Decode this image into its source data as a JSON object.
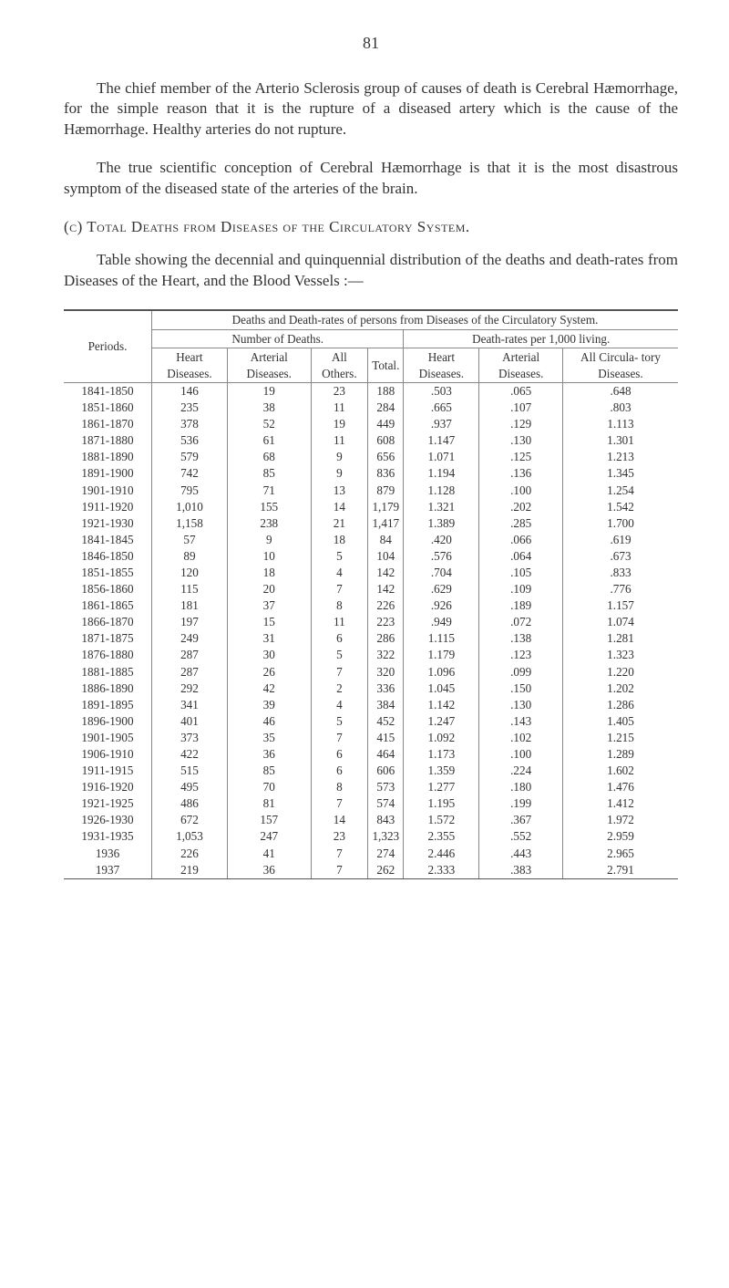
{
  "page_number": "81",
  "paragraphs": {
    "p1": "The chief member of the Arterio Sclerosis group of causes of death is Cerebral Hæmorrhage, for the simple reason that it is the rupture of a diseased artery which is the cause of the Hæmorrhage. Healthy arteries do not rupture.",
    "p2": "The true scientific conception of Cerebral Hæmorrhage is that it is the most disastrous symptom of the diseased state of the arteries of the brain.",
    "p3": "Table showing the decennial and quinquennial distribution of the deaths and death-rates from Diseases of the Heart, and the Blood Vessels :—"
  },
  "section_label": "(c)  Total Deaths from Diseases of the Circulatory System.",
  "table": {
    "caption": "Deaths and Death-rates of persons from Diseases of the Circulatory System.",
    "periods_label": "Periods.",
    "group1": "Number of Deaths.",
    "group2": "Death-rates per 1,000 living.",
    "cols": {
      "c1": "Heart Diseases.",
      "c2": "Arterial Diseases.",
      "c3": "All Others.",
      "c4": "Total.",
      "c5": "Heart Diseases.",
      "c6": "Arterial Diseases.",
      "c7": "All Circula- tory Diseases."
    },
    "blockA": [
      [
        "1841-1850",
        "146",
        "19",
        "23",
        "188",
        ".503",
        ".065",
        ".648"
      ],
      [
        "1851-1860",
        "235",
        "38",
        "11",
        "284",
        ".665",
        ".107",
        ".803"
      ],
      [
        "1861-1870",
        "378",
        "52",
        "19",
        "449",
        ".937",
        ".129",
        "1.113"
      ],
      [
        "1871-1880",
        "536",
        "61",
        "11",
        "608",
        "1.147",
        ".130",
        "1.301"
      ],
      [
        "1881-1890",
        "579",
        "68",
        "9",
        "656",
        "1.071",
        ".125",
        "1.213"
      ],
      [
        "1891-1900",
        "742",
        "85",
        "9",
        "836",
        "1.194",
        ".136",
        "1.345"
      ],
      [
        "1901-1910",
        "795",
        "71",
        "13",
        "879",
        "1.128",
        ".100",
        "1.254"
      ],
      [
        "1911-1920",
        "1,010",
        "155",
        "14",
        "1,179",
        "1.321",
        ".202",
        "1.542"
      ],
      [
        "1921-1930",
        "1,158",
        "238",
        "21",
        "1,417",
        "1.389",
        ".285",
        "1.700"
      ]
    ],
    "blockB": [
      [
        "1841-1845",
        "57",
        "9",
        "18",
        "84",
        ".420",
        ".066",
        ".619"
      ],
      [
        "1846-1850",
        "89",
        "10",
        "5",
        "104",
        ".576",
        ".064",
        ".673"
      ],
      [
        "1851-1855",
        "120",
        "18",
        "4",
        "142",
        ".704",
        ".105",
        ".833"
      ],
      [
        "1856-1860",
        "115",
        "20",
        "7",
        "142",
        ".629",
        ".109",
        ".776"
      ],
      [
        "1861-1865",
        "181",
        "37",
        "8",
        "226",
        ".926",
        ".189",
        "1.157"
      ],
      [
        "1866-1870",
        "197",
        "15",
        "11",
        "223",
        ".949",
        ".072",
        "1.074"
      ],
      [
        "1871-1875",
        "249",
        "31",
        "6",
        "286",
        "1.115",
        ".138",
        "1.281"
      ],
      [
        "1876-1880",
        "287",
        "30",
        "5",
        "322",
        "1.179",
        ".123",
        "1.323"
      ],
      [
        "1881-1885",
        "287",
        "26",
        "7",
        "320",
        "1.096",
        ".099",
        "1.220"
      ],
      [
        "1886-1890",
        "292",
        "42",
        "2",
        "336",
        "1.045",
        ".150",
        "1.202"
      ],
      [
        "1891-1895",
        "341",
        "39",
        "4",
        "384",
        "1.142",
        ".130",
        "1.286"
      ],
      [
        "1896-1900",
        "401",
        "46",
        "5",
        "452",
        "1.247",
        ".143",
        "1.405"
      ],
      [
        "1901-1905",
        "373",
        "35",
        "7",
        "415",
        "1.092",
        ".102",
        "1.215"
      ],
      [
        "1906-1910",
        "422",
        "36",
        "6",
        "464",
        "1.173",
        ".100",
        "1.289"
      ],
      [
        "1911-1915",
        "515",
        "85",
        "6",
        "606",
        "1.359",
        ".224",
        "1.602"
      ],
      [
        "1916-1920",
        "495",
        "70",
        "8",
        "573",
        "1.277",
        ".180",
        "1.476"
      ],
      [
        "1921-1925",
        "486",
        "81",
        "7",
        "574",
        "1.195",
        ".199",
        "1.412"
      ],
      [
        "1926-1930",
        "672",
        "157",
        "14",
        "843",
        "1.572",
        ".367",
        "1.972"
      ],
      [
        "1931-1935",
        "1,053",
        "247",
        "23",
        "1,323",
        "2.355",
        ".552",
        "2.959"
      ],
      [
        "1936",
        "226",
        "41",
        "7",
        "274",
        "2.446",
        ".443",
        "2.965"
      ],
      [
        "1937",
        "219",
        "36",
        "7",
        "262",
        "2.333",
        ".383",
        "2.791"
      ]
    ]
  }
}
